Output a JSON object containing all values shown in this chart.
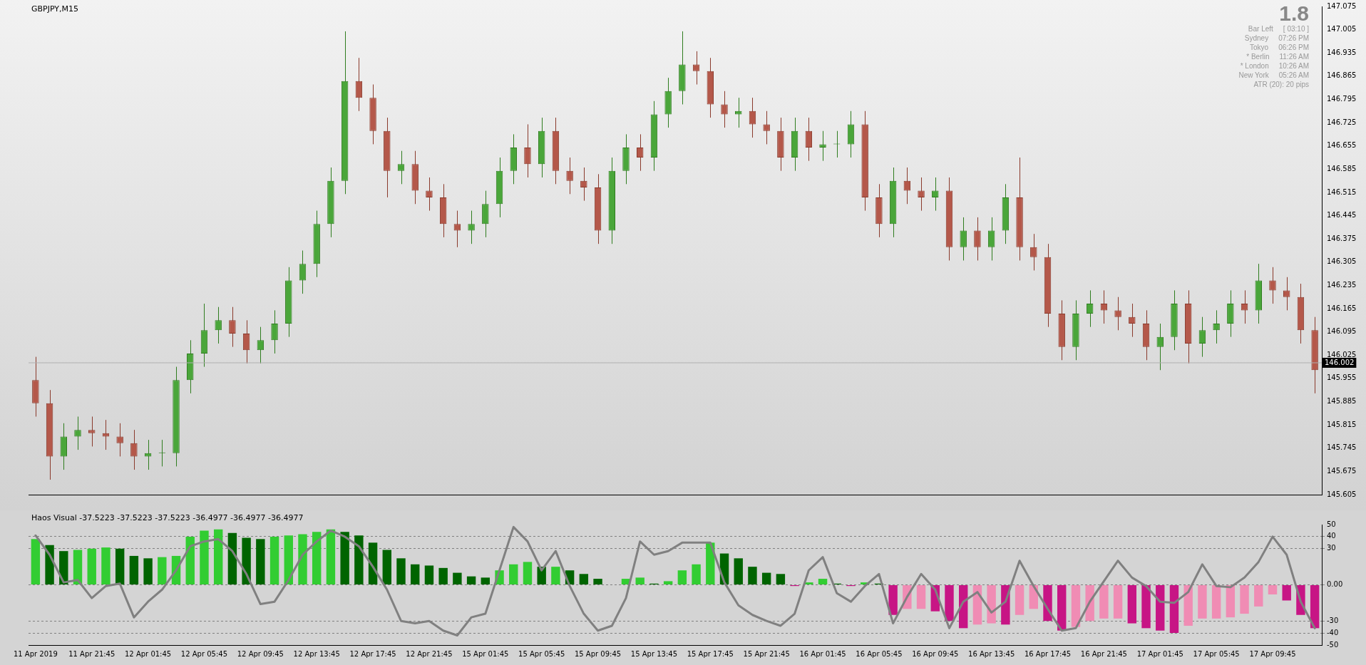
{
  "chart_data": [
    {
      "type": "candlestick",
      "title": "GBPJPY,M15",
      "categories": [
        null,
        null,
        null,
        null,
        null,
        null,
        null,
        null,
        null,
        null,
        null,
        null,
        null,
        null,
        null,
        null,
        null,
        null,
        null,
        null,
        null,
        null,
        null,
        null,
        null,
        null,
        null,
        null,
        null,
        null,
        null,
        null,
        null,
        null,
        null,
        null,
        null,
        null,
        null,
        null,
        null,
        null,
        null,
        null,
        null,
        null,
        null,
        null,
        null,
        null,
        null,
        null,
        null,
        null,
        null,
        null,
        null,
        null,
        null,
        null,
        null,
        null,
        null,
        null,
        null,
        null,
        null,
        null,
        null,
        null,
        null,
        null,
        null,
        null,
        null,
        null,
        null,
        null,
        null,
        null,
        null,
        null,
        null,
        null,
        null,
        null,
        null,
        null,
        null,
        null,
        null,
        null
      ],
      "ohlc": [
        [
          145.95,
          146.02,
          145.84,
          145.88
        ],
        [
          145.88,
          145.92,
          145.65,
          145.72
        ],
        [
          145.72,
          145.82,
          145.68,
          145.78
        ],
        [
          145.78,
          145.84,
          145.74,
          145.8
        ],
        [
          145.8,
          145.84,
          145.75,
          145.79
        ],
        [
          145.79,
          145.83,
          145.74,
          145.78
        ],
        [
          145.78,
          145.82,
          145.72,
          145.76
        ],
        [
          145.76,
          145.8,
          145.68,
          145.72
        ],
        [
          145.72,
          145.77,
          145.68,
          145.73
        ],
        [
          145.73,
          145.77,
          145.69,
          145.73
        ],
        [
          145.73,
          145.99,
          145.69,
          145.95
        ],
        [
          145.95,
          146.07,
          145.91,
          146.03
        ],
        [
          146.03,
          146.18,
          145.99,
          146.1
        ],
        [
          146.1,
          146.17,
          146.06,
          146.13
        ],
        [
          146.13,
          146.17,
          146.05,
          146.09
        ],
        [
          146.09,
          146.13,
          146.0,
          146.04
        ],
        [
          146.04,
          146.11,
          146.0,
          146.07
        ],
        [
          146.07,
          146.16,
          146.03,
          146.12
        ],
        [
          146.12,
          146.29,
          146.08,
          146.25
        ],
        [
          146.25,
          146.34,
          146.21,
          146.3
        ],
        [
          146.3,
          146.46,
          146.26,
          146.42
        ],
        [
          146.42,
          146.59,
          146.38,
          146.55
        ],
        [
          146.55,
          147.0,
          146.51,
          146.85
        ],
        [
          146.85,
          146.92,
          146.76,
          146.8
        ],
        [
          146.8,
          146.84,
          146.66,
          146.7
        ],
        [
          146.7,
          146.74,
          146.5,
          146.58
        ],
        [
          146.58,
          146.64,
          146.54,
          146.6
        ],
        [
          146.6,
          146.64,
          146.48,
          146.52
        ],
        [
          146.52,
          146.56,
          146.46,
          146.5
        ],
        [
          146.5,
          146.54,
          146.38,
          146.42
        ],
        [
          146.42,
          146.46,
          146.35,
          146.4
        ],
        [
          146.4,
          146.46,
          146.36,
          146.42
        ],
        [
          146.42,
          146.52,
          146.38,
          146.48
        ],
        [
          146.48,
          146.62,
          146.44,
          146.58
        ],
        [
          146.58,
          146.69,
          146.54,
          146.65
        ],
        [
          146.65,
          146.72,
          146.56,
          146.6
        ],
        [
          146.6,
          146.74,
          146.56,
          146.7
        ],
        [
          146.7,
          146.74,
          146.54,
          146.58
        ],
        [
          146.58,
          146.62,
          146.51,
          146.55
        ],
        [
          146.55,
          146.59,
          146.49,
          146.53
        ],
        [
          146.53,
          146.57,
          146.36,
          146.4
        ],
        [
          146.4,
          146.62,
          146.36,
          146.58
        ],
        [
          146.58,
          146.69,
          146.54,
          146.65
        ],
        [
          146.65,
          146.69,
          146.58,
          146.62
        ],
        [
          146.62,
          146.79,
          146.58,
          146.75
        ],
        [
          146.75,
          146.86,
          146.71,
          146.82
        ],
        [
          146.82,
          147.0,
          146.78,
          146.9
        ],
        [
          146.9,
          146.94,
          146.84,
          146.88
        ],
        [
          146.88,
          146.92,
          146.74,
          146.78
        ],
        [
          146.78,
          146.82,
          146.71,
          146.75
        ],
        [
          146.75,
          146.8,
          146.71,
          146.76
        ],
        [
          146.76,
          146.8,
          146.68,
          146.72
        ],
        [
          146.72,
          146.76,
          146.66,
          146.7
        ],
        [
          146.7,
          146.74,
          146.58,
          146.62
        ],
        [
          146.62,
          146.74,
          146.58,
          146.7
        ],
        [
          146.7,
          146.74,
          146.61,
          146.65
        ],
        [
          146.65,
          146.7,
          146.61,
          146.66
        ],
        [
          146.66,
          146.7,
          146.62,
          146.66
        ],
        [
          146.66,
          146.76,
          146.62,
          146.72
        ],
        [
          146.72,
          146.76,
          146.46,
          146.5
        ],
        [
          146.5,
          146.54,
          146.38,
          146.42
        ],
        [
          146.42,
          146.59,
          146.38,
          146.55
        ],
        [
          146.55,
          146.59,
          146.48,
          146.52
        ],
        [
          146.52,
          146.56,
          146.46,
          146.5
        ],
        [
          146.5,
          146.56,
          146.46,
          146.52
        ],
        [
          146.52,
          146.56,
          146.31,
          146.35
        ],
        [
          146.35,
          146.44,
          146.31,
          146.4
        ],
        [
          146.4,
          146.44,
          146.31,
          146.35
        ],
        [
          146.35,
          146.44,
          146.31,
          146.4
        ],
        [
          146.4,
          146.54,
          146.36,
          146.5
        ],
        [
          146.5,
          146.62,
          146.31,
          146.35
        ],
        [
          146.35,
          146.39,
          146.28,
          146.32
        ],
        [
          146.32,
          146.36,
          146.11,
          146.15
        ],
        [
          146.15,
          146.19,
          146.01,
          146.05
        ],
        [
          146.05,
          146.19,
          146.01,
          146.15
        ],
        [
          146.15,
          146.22,
          146.11,
          146.18
        ],
        [
          146.18,
          146.22,
          146.12,
          146.16
        ],
        [
          146.16,
          146.2,
          146.1,
          146.14
        ],
        [
          146.14,
          146.18,
          146.08,
          146.12
        ],
        [
          146.12,
          146.16,
          146.01,
          146.05
        ],
        [
          146.05,
          146.12,
          145.98,
          146.08
        ],
        [
          146.08,
          146.22,
          146.04,
          146.18
        ],
        [
          146.18,
          146.22,
          146.0,
          146.06
        ],
        [
          146.06,
          146.14,
          146.02,
          146.1
        ],
        [
          146.1,
          146.16,
          146.06,
          146.12
        ],
        [
          146.12,
          146.22,
          146.08,
          146.18
        ],
        [
          146.18,
          146.22,
          146.12,
          146.16
        ],
        [
          146.16,
          146.3,
          146.12,
          146.25
        ],
        [
          146.25,
          146.29,
          146.18,
          146.22
        ],
        [
          146.22,
          146.26,
          146.16,
          146.2
        ],
        [
          146.2,
          146.24,
          146.06,
          146.1
        ],
        [
          146.1,
          146.14,
          145.91,
          145.98
        ]
      ],
      "ylim": [
        145.605,
        147.075
      ],
      "yticks": [
        145.605,
        145.675,
        145.745,
        145.815,
        145.885,
        145.955,
        146.025,
        146.095,
        146.165,
        146.235,
        146.305,
        146.375,
        146.445,
        146.515,
        146.585,
        146.655,
        146.725,
        146.795,
        146.865,
        146.935,
        147.005,
        147.075
      ],
      "ref_lines": [
        {
          "axis": "y",
          "value": 146.002,
          "label": "146.002"
        }
      ],
      "annotations": [
        "1.8",
        "Bar Left",
        "[ 03:10 ]",
        "Sydney",
        "07:26 PM",
        "Tokyo",
        "06:26 PM",
        "* Berlin",
        "11:26 AM",
        "* London",
        "10:26 AM",
        "New York",
        "05:26 AM",
        "ATR (20): 20 pips"
      ]
    },
    {
      "type": "bar",
      "title": "Haos Visual -37.5223 -37.5223 -37.5223 -36.4977 -36.4977 -36.4977",
      "categories": [
        "11 Apr 2019",
        null,
        null,
        null,
        "11 Apr 21:45",
        null,
        null,
        null,
        "12 Apr 01:45",
        null,
        null,
        null,
        "12 Apr 05:45",
        null,
        null,
        null,
        "12 Apr 09:45",
        null,
        null,
        null,
        "12 Apr 13:45",
        null,
        null,
        null,
        "12 Apr 17:45",
        null,
        null,
        null,
        "12 Apr 21:45",
        null,
        null,
        null,
        "15 Apr 01:45",
        null,
        null,
        null,
        "15 Apr 05:45",
        null,
        null,
        null,
        "15 Apr 09:45",
        null,
        null,
        null,
        "15 Apr 13:45",
        null,
        null,
        null,
        "15 Apr 17:45",
        null,
        null,
        null,
        "15 Apr 21:45",
        null,
        null,
        null,
        "16 Apr 01:45",
        null,
        null,
        null,
        "16 Apr 05:45",
        null,
        null,
        null,
        "16 Apr 09:45",
        null,
        null,
        null,
        "16 Apr 13:45",
        null,
        null,
        null,
        "16 Apr 17:45",
        null,
        null,
        null,
        "16 Apr 21:45",
        null,
        null,
        null,
        "17 Apr 01:45",
        null,
        null,
        null,
        "17 Apr 05:45",
        null,
        null,
        null,
        "17 Apr 09:45",
        null,
        null,
        null
      ],
      "series": [
        {
          "type": "bar",
          "values": [
            38,
            33,
            28,
            29,
            30,
            31,
            30,
            24,
            22,
            23,
            24,
            40,
            45,
            46,
            43,
            39,
            38,
            40,
            41,
            42,
            44,
            46,
            44,
            41,
            35,
            29,
            22,
            17,
            16,
            14,
            10,
            7,
            6,
            12,
            17,
            19,
            15,
            15,
            12,
            9,
            5,
            0,
            5,
            6,
            1,
            3,
            12,
            17,
            35,
            26,
            22,
            15,
            10,
            9,
            -1,
            2,
            5,
            1,
            -1,
            2,
            1,
            -25,
            -20,
            -20,
            -22,
            -30,
            -36,
            -33,
            -32,
            -33,
            -25,
            -20,
            -30,
            -38,
            -35,
            -30,
            -28,
            -28,
            -32,
            -36,
            -38,
            -40,
            -34,
            -28,
            -28,
            -27,
            -24,
            -18,
            -8,
            -13,
            -25,
            -36
          ],
          "colors": [
            "#32cd32",
            "#006400",
            "#006400",
            "#32cd32",
            "#32cd32",
            "#32cd32",
            "#006400",
            "#006400",
            "#006400",
            "#32cd32",
            "#32cd32",
            "#32cd32",
            "#32cd32",
            "#32cd32",
            "#006400",
            "#006400",
            "#006400",
            "#32cd32",
            "#32cd32",
            "#32cd32",
            "#32cd32",
            "#32cd32",
            "#006400",
            "#006400",
            "#006400",
            "#006400",
            "#006400",
            "#006400",
            "#006400",
            "#006400",
            "#006400",
            "#006400",
            "#006400",
            "#32cd32",
            "#32cd32",
            "#32cd32",
            "#006400",
            "#32cd32",
            "#006400",
            "#006400",
            "#006400",
            "#006400",
            "#32cd32",
            "#32cd32",
            "#006400",
            "#32cd32",
            "#32cd32",
            "#32cd32",
            "#32cd32",
            "#006400",
            "#006400",
            "#006400",
            "#006400",
            "#006400",
            "#c71585",
            "#32cd32",
            "#32cd32",
            "#006400",
            "#c71585",
            "#32cd32",
            "#006400",
            "#c71585",
            "#f08cb4",
            "#f08cb4",
            "#c71585",
            "#c71585",
            "#c71585",
            "#f08cb4",
            "#f08cb4",
            "#c71585",
            "#f08cb4",
            "#f08cb4",
            "#c71585",
            "#c71585",
            "#f08cb4",
            "#f08cb4",
            "#f08cb4",
            "#f08cb4",
            "#c71585",
            "#c71585",
            "#c71585",
            "#c71585",
            "#f08cb4",
            "#f08cb4",
            "#f08cb4",
            "#f08cb4",
            "#f08cb4",
            "#f08cb4",
            "#f08cb4",
            "#c71585",
            "#c71585",
            "#c71585"
          ]
        },
        {
          "type": "line",
          "color": "#808080",
          "values": [
            41,
            25,
            2,
            4,
            -11,
            -1,
            1,
            -27,
            -14,
            -4,
            12,
            32,
            36,
            38,
            28,
            9,
            -16,
            -14,
            4,
            25,
            36,
            45,
            40,
            32,
            15,
            -4,
            -30,
            -32,
            -30,
            -38,
            -42,
            -27,
            -24,
            12,
            48,
            36,
            12,
            28,
            -1,
            -24,
            -38,
            -34,
            -11,
            36,
            25,
            28,
            35,
            35,
            35,
            2,
            -17,
            -25,
            -30,
            -34,
            -24,
            12,
            23,
            -7,
            -14,
            -1,
            9,
            -32,
            -10,
            9,
            -4,
            -36,
            -14,
            -6,
            -23,
            -14,
            20,
            -1,
            -20,
            -38,
            -36,
            -14,
            3,
            20,
            6,
            -1,
            -14,
            -15,
            -6,
            17,
            -1,
            -2,
            6,
            19,
            40,
            25,
            -14,
            -36
          ]
        }
      ],
      "ylim": [
        -50,
        50
      ],
      "yticks": [
        -50,
        -40,
        -30,
        {
          "value": 0,
          "label": "0.00"
        },
        30,
        40,
        50
      ],
      "grid": "y",
      "line_style": "solid",
      "marker": "none"
    }
  ]
}
